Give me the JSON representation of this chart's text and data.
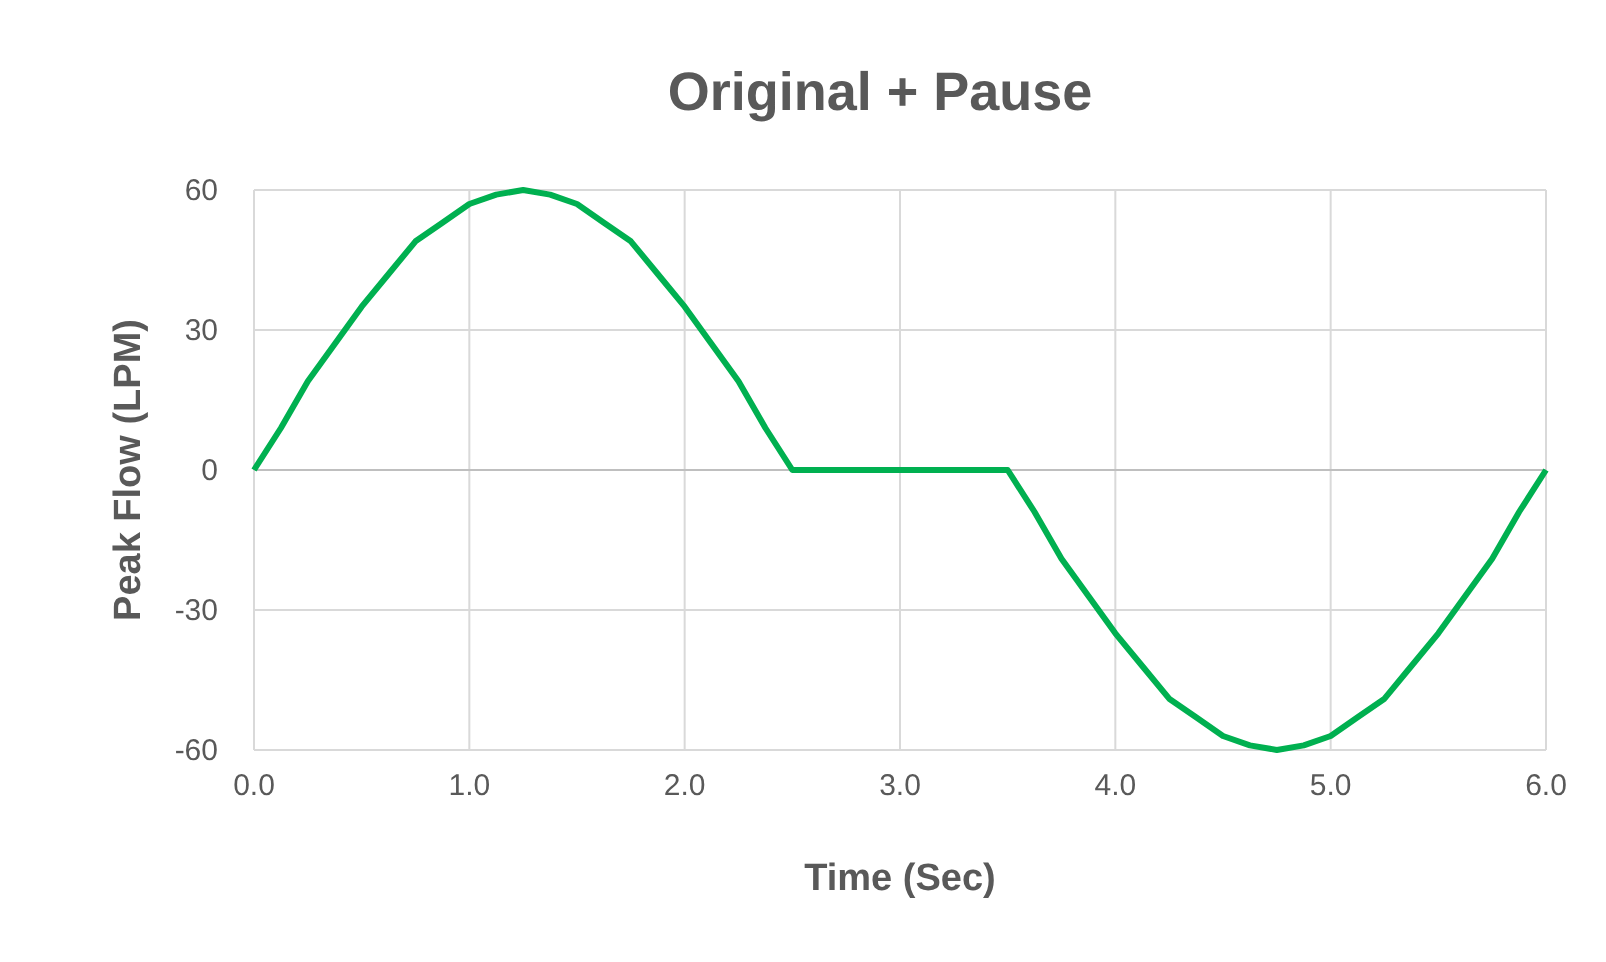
{
  "chart_data": {
    "type": "line",
    "title": "Original + Pause",
    "xlabel": "Time (Sec)",
    "ylabel": "Peak Flow (LPM)",
    "x": [
      0,
      0.125,
      0.25,
      0.375,
      0.5,
      0.625,
      0.75,
      0.875,
      1,
      1.125,
      1.25,
      1.375,
      1.5,
      1.625,
      1.75,
      1.875,
      2,
      2.125,
      2.25,
      2.375,
      2.5,
      3,
      3.5,
      3.625,
      3.75,
      3.875,
      4,
      4.125,
      4.25,
      4.375,
      4.5,
      4.625,
      4.75,
      4.875,
      5,
      5.125,
      5.25,
      5.375,
      5.5,
      5.625,
      5.75,
      5.875,
      6
    ],
    "series": [
      {
        "color": "#00b050",
        "values": [
          0,
          9,
          19,
          27,
          35,
          42,
          49,
          53,
          57,
          59,
          60,
          59,
          57,
          53,
          49,
          42,
          35,
          27,
          19,
          9,
          0,
          0,
          0,
          -9,
          -19,
          -27,
          -35,
          -42,
          -49,
          -53,
          -57,
          -59,
          -60,
          -59,
          -57,
          -53,
          -49,
          -42,
          -35,
          -27,
          -19,
          -9,
          0
        ]
      }
    ],
    "xlim": [
      0,
      6
    ],
    "xticks": [
      {
        "value": 0,
        "label": "0.0"
      },
      {
        "value": 1,
        "label": "1.0"
      },
      {
        "value": 2,
        "label": "2.0"
      },
      {
        "value": 3,
        "label": "3.0"
      },
      {
        "value": 4,
        "label": "4.0"
      },
      {
        "value": 5,
        "label": "5.0"
      },
      {
        "value": 6,
        "label": "6.0"
      }
    ],
    "ylim": [
      -60,
      60
    ],
    "yticks": [
      -60,
      -30,
      0,
      30,
      60
    ],
    "grid": true,
    "marker": "none",
    "line_style": "solid"
  }
}
